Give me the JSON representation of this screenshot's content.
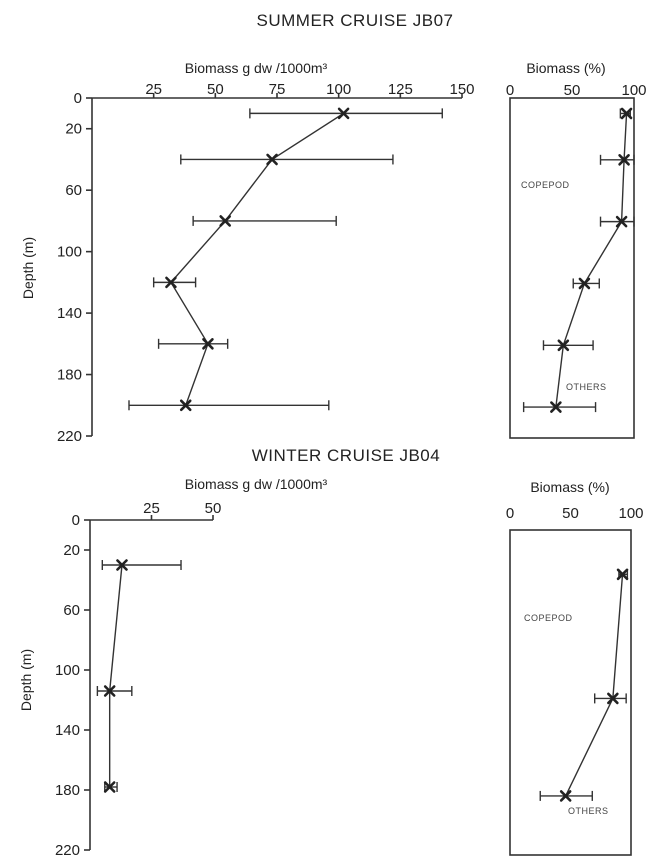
{
  "chart_data": [
    {
      "type": "line",
      "title": "SUMMER CRUISE JB07",
      "xlabel": "Biomass g dw /1000m³",
      "ylabel": "Depth (m)",
      "xlim": [
        0,
        150
      ],
      "ylim": [
        0,
        220
      ],
      "xticks": [
        "25",
        "50",
        "75",
        "100",
        "125",
        "150"
      ],
      "yticks": [
        "0",
        "20",
        "60",
        "100",
        "140",
        "180",
        "220"
      ],
      "series": [
        {
          "y": [
            10,
            40,
            80,
            120,
            160,
            200
          ],
          "x": [
            102,
            73,
            54,
            32,
            47,
            38
          ],
          "xerr_low": [
            64,
            36,
            41,
            25,
            27,
            15
          ],
          "xerr_high": [
            142,
            122,
            99,
            42,
            55,
            96
          ]
        }
      ]
    },
    {
      "type": "line",
      "xlabel": "Biomass (%)",
      "ylim": [
        0,
        220
      ],
      "xlim": [
        0,
        100
      ],
      "xticks": [
        "0",
        "50",
        "100"
      ],
      "annotations": [
        "COPEPOD",
        "OTHERS"
      ],
      "series": [
        {
          "y": [
            10,
            40,
            80,
            120,
            160,
            200
          ],
          "x": [
            94,
            92,
            90,
            60,
            43,
            37
          ],
          "xerr_low": [
            89,
            73,
            73,
            51,
            27,
            11
          ],
          "xerr_high": [
            97,
            100,
            100,
            72,
            67,
            69
          ]
        }
      ]
    },
    {
      "type": "line",
      "title": "WINTER CRUISE JB04",
      "xlabel": "Biomass g dw /1000m³",
      "ylabel": "Depth (m)",
      "xlim": [
        0,
        50
      ],
      "ylim": [
        0,
        220
      ],
      "xticks": [
        "25",
        "50"
      ],
      "yticks": [
        "0",
        "20",
        "60",
        "100",
        "140",
        "180",
        "220"
      ],
      "series": [
        {
          "y": [
            30,
            114,
            178
          ],
          "x": [
            13,
            8,
            8
          ],
          "xerr_low": [
            5,
            3,
            6
          ],
          "xerr_high": [
            37,
            17,
            11
          ]
        }
      ]
    },
    {
      "type": "line",
      "xlabel": "Biomass (%)",
      "ylim": [
        0,
        220
      ],
      "xlim": [
        0,
        100
      ],
      "xticks": [
        "0",
        "50",
        "100"
      ],
      "annotations": [
        "COPEPOD",
        "OTHERS"
      ],
      "series": [
        {
          "y": [
            30,
            114,
            180
          ],
          "x": [
            93,
            85,
            46
          ],
          "xerr_low": [
            90,
            70,
            25
          ],
          "xerr_high": [
            97,
            96,
            68
          ]
        }
      ]
    }
  ]
}
